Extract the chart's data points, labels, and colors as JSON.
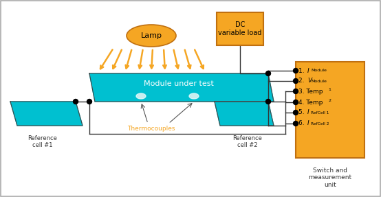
{
  "panel_color": "#00c0d0",
  "lamp_color": "#f5a623",
  "wire_color": "#333333",
  "orange": "#f5a623",
  "dc_face": "#f5a623",
  "dc_edge": "#c8880a",
  "lamp_text": "Lamp",
  "dc_text": "DC\nvariable load",
  "switch_text": "Switch and\nmeasurement\nunit",
  "module_text": "Module under test",
  "ref1_text": "Reference\ncell #1",
  "ref2_text": "Reference\ncell #2",
  "thermo_text": "Thermocouples"
}
